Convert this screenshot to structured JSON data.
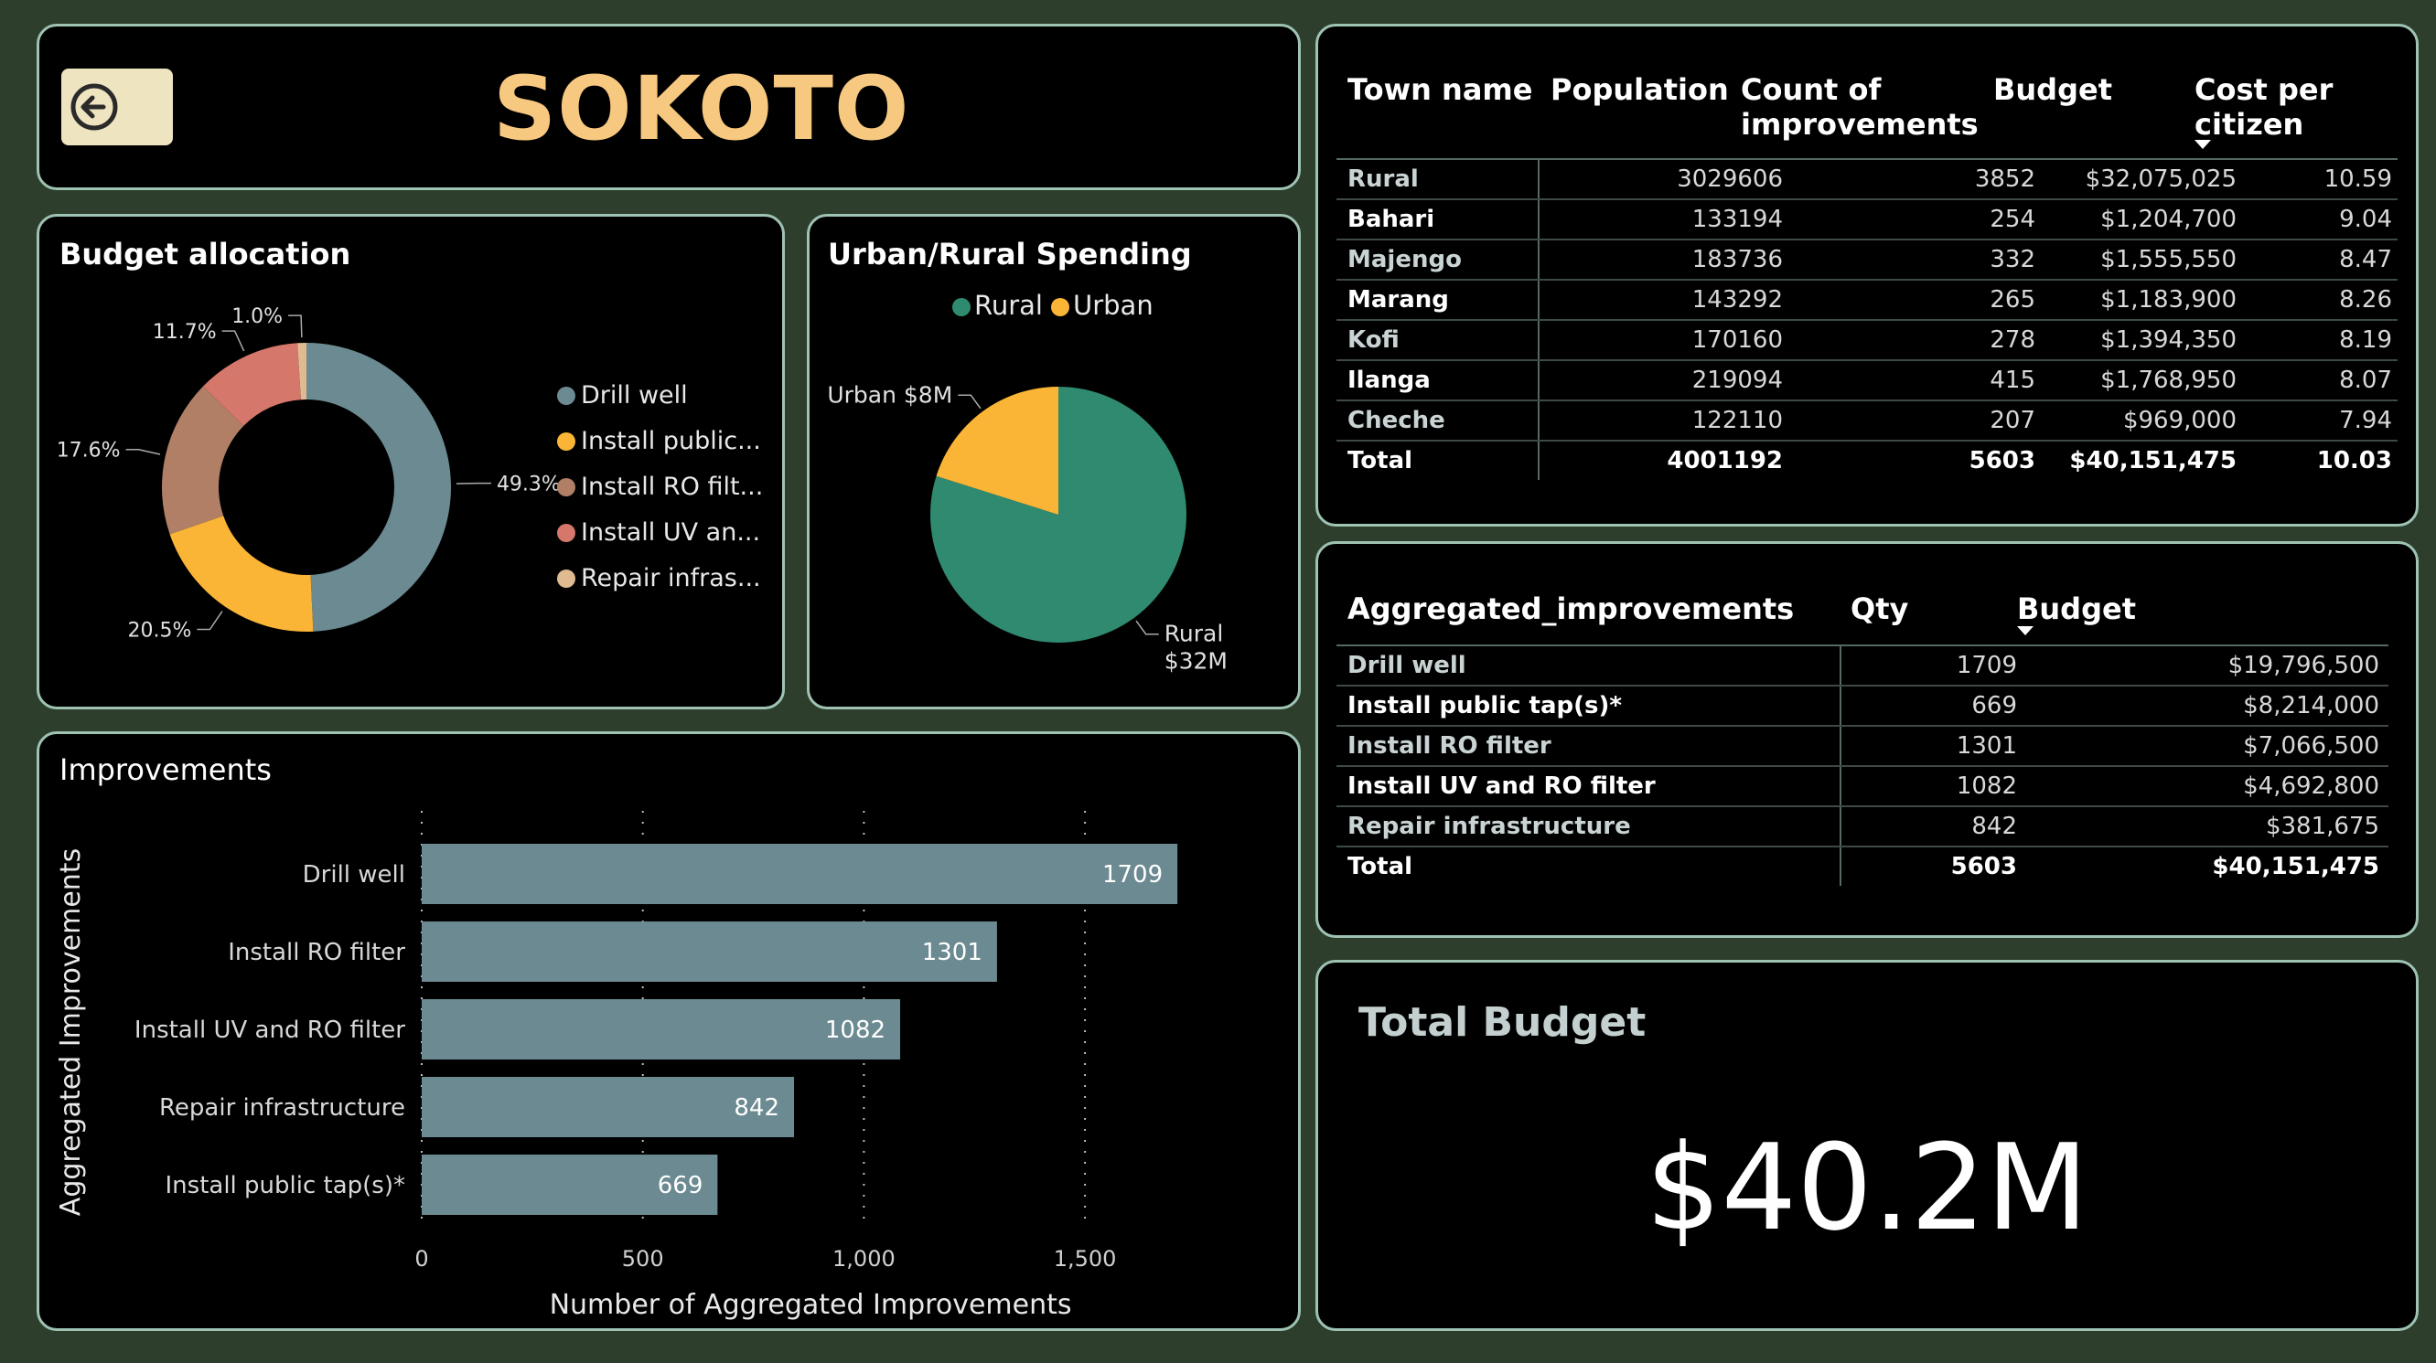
{
  "header": {
    "title": "SOKOTO",
    "back_icon": "back-arrow-circle-icon"
  },
  "colors": {
    "background": "#2e3e2c",
    "card_border": "#9ec3b3",
    "title": "#f7c87f",
    "bar": "#6b8a91",
    "rural": "#2f8a70",
    "urban": "#fbb536"
  },
  "budget_allocation": {
    "title": "Budget allocation",
    "chart_data": {
      "type": "pie",
      "subtype": "donut",
      "slices": [
        {
          "label": "Drill well",
          "legend": "Drill well",
          "value": 49.3,
          "value_label": "49.3%",
          "color": "#6b8a91"
        },
        {
          "label": "Install public tap(s)*",
          "legend": "Install public...",
          "value": 20.5,
          "value_label": "20.5%",
          "color": "#fbb536"
        },
        {
          "label": "Install RO filter",
          "legend": "Install RO filt...",
          "value": 17.6,
          "value_label": "17.6%",
          "color": "#b07f66"
        },
        {
          "label": "Install UV and RO filter",
          "legend": "Install UV an...",
          "value": 11.7,
          "value_label": "11.7%",
          "color": "#d5776a"
        },
        {
          "label": "Repair infrastructure",
          "legend": "Repair infras...",
          "value": 1.0,
          "value_label": "1.0%",
          "color": "#e0bb91"
        }
      ]
    }
  },
  "urban_rural": {
    "title": "Urban/Rural Spending",
    "chart_data": {
      "type": "pie",
      "legend": [
        {
          "label": "Rural",
          "color": "#2f8a70"
        },
        {
          "label": "Urban",
          "color": "#fbb536"
        }
      ],
      "slices": [
        {
          "label": "Rural",
          "value": 32075025,
          "value_label_lines": [
            "Rural",
            "$32M"
          ],
          "color": "#2f8a70"
        },
        {
          "label": "Urban",
          "value": 8076450,
          "value_label_lines": [
            "Urban $8M"
          ],
          "color": "#fbb536"
        }
      ]
    }
  },
  "improvements": {
    "title": "Improvements",
    "chart_data": {
      "type": "bar",
      "orientation": "horizontal",
      "categories": [
        "Drill well",
        "Install RO filter",
        "Install UV and RO filter",
        "Repair infrastructure",
        "Install public tap(s)*"
      ],
      "values": [
        1709,
        1301,
        1082,
        842,
        669
      ],
      "xlabel": "Number of Aggregated Improvements",
      "ylabel": "Aggregated Improvements",
      "xlim": [
        0,
        1800
      ],
      "xticks": [
        0,
        500,
        1000,
        1500
      ],
      "xtick_labels": [
        "0",
        "500",
        "1,000",
        "1,500"
      ],
      "grid": "vertical dotted"
    }
  },
  "town_table": {
    "headers": {
      "town": "Town name",
      "population": "Population",
      "count_l1": "Count of",
      "count_l2": "improvements",
      "budget": "Budget",
      "cost_l1": "Cost per",
      "cost_l2": "citizen"
    },
    "sort_icon": "sort-desc-icon",
    "rows": [
      {
        "town": "Rural",
        "population": "3029606",
        "count": "3852",
        "budget": "$32,075,025",
        "cost": "10.59"
      },
      {
        "town": "Bahari",
        "population": "133194",
        "count": "254",
        "budget": "$1,204,700",
        "cost": "9.04"
      },
      {
        "town": "Majengo",
        "population": "183736",
        "count": "332",
        "budget": "$1,555,550",
        "cost": "8.47"
      },
      {
        "town": "Marang",
        "population": "143292",
        "count": "265",
        "budget": "$1,183,900",
        "cost": "8.26"
      },
      {
        "town": "Kofi",
        "population": "170160",
        "count": "278",
        "budget": "$1,394,350",
        "cost": "8.19"
      },
      {
        "town": "Ilanga",
        "population": "219094",
        "count": "415",
        "budget": "$1,768,950",
        "cost": "8.07"
      },
      {
        "town": "Cheche",
        "population": "122110",
        "count": "207",
        "budget": "$969,000",
        "cost": "7.94"
      }
    ],
    "total": {
      "town": "Total",
      "population": "4001192",
      "count": "5603",
      "budget": "$40,151,475",
      "cost": "10.03"
    }
  },
  "agg_table": {
    "headers": {
      "name": "Aggregated_improvements",
      "qty": "Qty",
      "budget": "Budget"
    },
    "sort_icon": "sort-desc-icon",
    "rows": [
      {
        "name": "Drill well",
        "qty": "1709",
        "budget": "$19,796,500"
      },
      {
        "name": "Install public tap(s)*",
        "qty": "669",
        "budget": "$8,214,000"
      },
      {
        "name": "Install RO filter",
        "qty": "1301",
        "budget": "$7,066,500"
      },
      {
        "name": "Install UV and RO filter",
        "qty": "1082",
        "budget": "$4,692,800"
      },
      {
        "name": "Repair infrastructure",
        "qty": "842",
        "budget": "$381,675"
      }
    ],
    "total": {
      "name": "Total",
      "qty": "5603",
      "budget": "$40,151,475"
    }
  },
  "total_budget": {
    "title": "Total Budget",
    "value": "$40.2M"
  }
}
